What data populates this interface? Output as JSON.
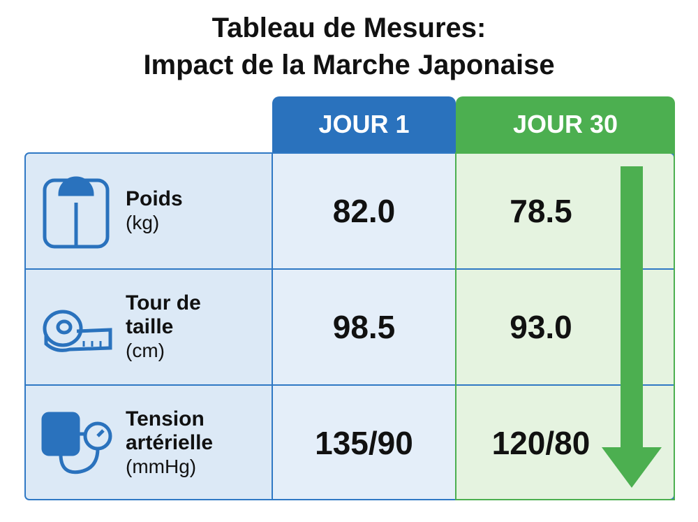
{
  "title": [
    "Tableau de Mesures:",
    "Impact de la Marche Japonaise"
  ],
  "table": {
    "columns": [
      "JOUR 1",
      "JOUR 30"
    ],
    "rows": [
      {
        "label": "Poids",
        "unit": "(kg)",
        "values": [
          "82.0",
          "78.5"
        ]
      },
      {
        "label": "Tour de taille",
        "unit": "(cm)",
        "values": [
          "98.5",
          "93.0"
        ]
      },
      {
        "label": "Tension artérielle",
        "unit": "(mmHg)",
        "values": [
          "135/90",
          "120/80"
        ]
      }
    ]
  }
}
